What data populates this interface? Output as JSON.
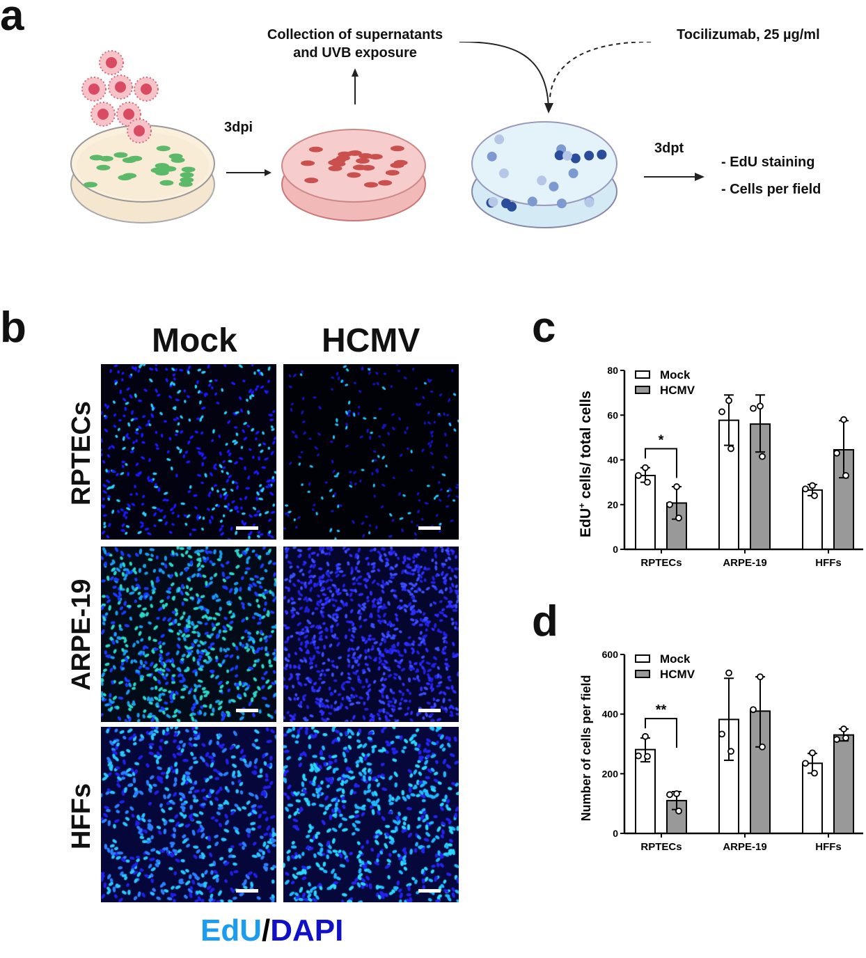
{
  "panel_a": {
    "letter": "a",
    "step1_label": "3dpi",
    "collection_label_line1": "Collection of supernatants",
    "collection_label_line2": "and UVB exposure",
    "treatment_label": "Tocilizumab, 25 µg/ml",
    "step2_label": "3dpt",
    "readout_1": "- EdU staining",
    "readout_2": "- Cells per field"
  },
  "panel_b": {
    "letter": "b",
    "columns": [
      "Mock",
      "HCMV"
    ],
    "rows": [
      "RPTECs",
      "ARPE-19",
      "HFFs"
    ],
    "legend_edu": "EdU",
    "legend_sep": "/",
    "legend_dapi": "DAPI",
    "colors": {
      "edu": "#1a9cf0",
      "dapi": "#1010c8"
    }
  },
  "panel_c": {
    "letter": "c"
  },
  "panel_d": {
    "letter": "d"
  },
  "chart_data": [
    {
      "type": "bar",
      "title": "",
      "xlabel": "",
      "ylabel_main": "EdU",
      "ylabel_sup": "+",
      "ylabel_rest": " cells/ total cells",
      "ylim": [
        0,
        80
      ],
      "yticks": [
        "0",
        "20",
        "40",
        "60",
        "80"
      ],
      "ytick_values": [
        0,
        20,
        40,
        60,
        80
      ],
      "categories": [
        "RPTECs",
        "ARPE-19",
        "HFFs"
      ],
      "legend": {
        "placement": "top-left",
        "entries": [
          "Mock",
          "HCMV"
        ]
      },
      "series": [
        {
          "name": "Mock",
          "color": "#ffffff",
          "values": [
            33,
            57.7,
            26.5
          ],
          "err_low": [
            30,
            46.5,
            24
          ],
          "err_high": [
            36.5,
            69,
            29
          ],
          "points": [
            [
              36.5,
              33,
              30
            ],
            [
              66.5,
              61.5,
              45
            ],
            [
              28.5,
              27,
              24
            ]
          ]
        },
        {
          "name": "HCMV",
          "color": "#999999",
          "values": [
            20.7,
            56,
            44.5
          ],
          "err_low": [
            13.5,
            43.5,
            32
          ],
          "err_high": [
            28,
            69,
            57.5
          ],
          "points": [
            [
              28,
              20,
              14
            ],
            [
              64,
              63,
              41.5
            ],
            [
              58,
              43,
              33
            ]
          ]
        }
      ],
      "significance": [
        {
          "category": "RPTECs",
          "label": "*",
          "y": 45
        }
      ]
    },
    {
      "type": "bar",
      "title": "",
      "xlabel": "",
      "ylabel_main": "Number of cells per field",
      "ylabel_sup": "",
      "ylabel_rest": "",
      "ylim": [
        0,
        600
      ],
      "yticks": [
        "0",
        "200",
        "400",
        "600"
      ],
      "ytick_values": [
        0,
        200,
        400,
        600
      ],
      "categories": [
        "RPTECs",
        "ARPE-19",
        "HFFs"
      ],
      "legend": {
        "placement": "top-left",
        "entries": [
          "Mock",
          "HCMV"
        ]
      },
      "series": [
        {
          "name": "Mock",
          "color": "#ffffff",
          "values": [
            281,
            382,
            235
          ],
          "err_low": [
            240,
            245,
            202
          ],
          "err_high": [
            320,
            520,
            268
          ],
          "points": [
            [
              325,
              260,
              258
            ],
            [
              538,
              333,
              275
            ],
            [
              270,
              235,
              202
            ]
          ]
        },
        {
          "name": "HCMV",
          "color": "#999999",
          "values": [
            110,
            410,
            330
          ],
          "err_low": [
            80,
            290,
            310
          ],
          "err_high": [
            140,
            525,
            350
          ],
          "points": [
            [
              133,
              130,
              75
            ],
            [
              525,
              415,
              290
            ],
            [
              350,
              315,
              320
            ]
          ]
        }
      ],
      "significance": [
        {
          "category": "RPTECs",
          "label": "**",
          "y": 385
        }
      ]
    }
  ]
}
